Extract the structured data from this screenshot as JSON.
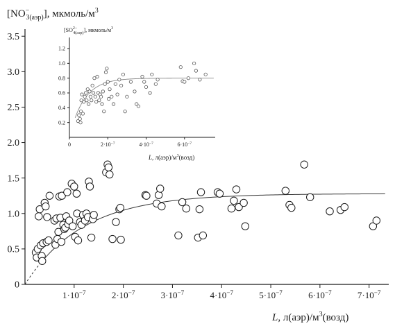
{
  "chart_data": [
    {
      "type": "scatter",
      "y_title": {
        "base": "[NO",
        "sup": "−",
        "sub": "3(аэр)",
        "rest": "], мкмоль/м",
        "unit_sup": "3"
      },
      "x_title": {
        "italic": "L",
        "rest": ", л(аэр)/м",
        "unit_sup": "3",
        "tail": "(возд)"
      },
      "xlim": [
        0,
        7.4e-07
      ],
      "ylim": [
        0,
        3.6
      ],
      "x_ticks": [
        {
          "value": 1e-07,
          "label": "1·10",
          "exp": "−7"
        },
        {
          "value": 2e-07,
          "label": "2·10",
          "exp": "−7"
        },
        {
          "value": 3e-07,
          "label": "3·10",
          "exp": "−7"
        },
        {
          "value": 4e-07,
          "label": "4·10",
          "exp": "−7"
        },
        {
          "value": 5e-07,
          "label": "5·10",
          "exp": "−7"
        },
        {
          "value": 6e-07,
          "label": "6·10",
          "exp": "−7"
        },
        {
          "value": 7e-07,
          "label": "7·10",
          "exp": "−7"
        }
      ],
      "y_ticks": [
        {
          "value": 0,
          "label": "0"
        },
        {
          "value": 0.5,
          "label": "0.5"
        },
        {
          "value": 1.0,
          "label": "1.0"
        },
        {
          "value": 1.5,
          "label": "1.5"
        },
        {
          "value": 2.0,
          "label": "2.0"
        },
        {
          "value": 2.5,
          "label": "2.5"
        },
        {
          "value": 3.0,
          "label": "3.0"
        },
        {
          "value": 3.5,
          "label": "3.5"
        }
      ],
      "points": [
        [
          2.2e-08,
          0.45
        ],
        [
          2.4e-08,
          0.38
        ],
        [
          2.6e-08,
          0.5
        ],
        [
          2.8e-08,
          0.96
        ],
        [
          3e-08,
          1.06
        ],
        [
          3.2e-08,
          0.55
        ],
        [
          3.4e-08,
          0.4
        ],
        [
          3.5e-08,
          0.33
        ],
        [
          3.7e-08,
          0.58
        ],
        [
          4e-08,
          1.15
        ],
        [
          4.2e-08,
          1.1
        ],
        [
          4.4e-08,
          0.6
        ],
        [
          4.5e-08,
          0.95
        ],
        [
          4.8e-08,
          0.62
        ],
        [
          5e-08,
          1.25
        ],
        [
          6e-08,
          0.9
        ],
        [
          6.2e-08,
          0.56
        ],
        [
          6.4e-08,
          0.93
        ],
        [
          6.6e-08,
          0.64
        ],
        [
          6.8e-08,
          0.74
        ],
        [
          7e-08,
          1.24
        ],
        [
          7.2e-08,
          0.94
        ],
        [
          7.4e-08,
          0.6
        ],
        [
          7.5e-08,
          1.25
        ],
        [
          7.8e-08,
          0.84
        ],
        [
          8e-08,
          0.78
        ],
        [
          8.2e-08,
          0.8
        ],
        [
          8.4e-08,
          0.96
        ],
        [
          8.6e-08,
          1.3
        ],
        [
          8.8e-08,
          0.85
        ],
        [
          9e-08,
          0.9
        ],
        [
          9.5e-08,
          1.42
        ],
        [
          9.7e-08,
          0.82
        ],
        [
          1e-07,
          1.38
        ],
        [
          1.02e-07,
          0.67
        ],
        [
          1.05e-07,
          1.28
        ],
        [
          1.06e-07,
          1.0
        ],
        [
          1.08e-07,
          0.62
        ],
        [
          1.12e-07,
          0.88
        ],
        [
          1.15e-07,
          0.84
        ],
        [
          1.18e-07,
          0.98
        ],
        [
          1.22e-07,
          0.9
        ],
        [
          1.25e-07,
          1.0
        ],
        [
          1.28e-07,
          0.95
        ],
        [
          1.3e-07,
          1.45
        ],
        [
          1.32e-07,
          1.38
        ],
        [
          1.35e-07,
          0.66
        ],
        [
          1.38e-07,
          0.92
        ],
        [
          1.4e-07,
          0.98
        ],
        [
          1.65e-07,
          1.58
        ],
        [
          1.68e-07,
          1.69
        ],
        [
          1.7e-07,
          1.65
        ],
        [
          1.72e-07,
          1.55
        ],
        [
          1.78e-07,
          0.64
        ],
        [
          1.85e-07,
          0.88
        ],
        [
          1.92e-07,
          1.06
        ],
        [
          1.94e-07,
          1.08
        ],
        [
          1.95e-07,
          0.63
        ],
        [
          2.45e-07,
          1.26
        ],
        [
          2.47e-07,
          1.25
        ],
        [
          2.68e-07,
          1.14
        ],
        [
          2.72e-07,
          1.26
        ],
        [
          2.75e-07,
          1.35
        ],
        [
          2.78e-07,
          1.1
        ],
        [
          3.12e-07,
          0.69
        ],
        [
          3.2e-07,
          1.16
        ],
        [
          3.28e-07,
          1.07
        ],
        [
          3.52e-07,
          0.66
        ],
        [
          3.55e-07,
          1.06
        ],
        [
          3.58e-07,
          1.3
        ],
        [
          3.62e-07,
          0.69
        ],
        [
          3.92e-07,
          1.3
        ],
        [
          3.96e-07,
          1.28
        ],
        [
          4.2e-07,
          1.07
        ],
        [
          4.25e-07,
          1.18
        ],
        [
          4.3e-07,
          1.34
        ],
        [
          4.35e-07,
          1.09
        ],
        [
          4.45e-07,
          1.15
        ],
        [
          4.48e-07,
          0.82
        ],
        [
          5.3e-07,
          1.32
        ],
        [
          5.38e-07,
          1.12
        ],
        [
          5.42e-07,
          1.08
        ],
        [
          5.68e-07,
          1.69
        ],
        [
          5.8e-07,
          1.23
        ],
        [
          6.2e-07,
          1.03
        ],
        [
          6.42e-07,
          1.05
        ],
        [
          6.5e-07,
          1.09
        ],
        [
          7.08e-07,
          0.82
        ],
        [
          7.15e-07,
          0.9
        ]
      ],
      "fit": {
        "type": "saturation",
        "ymax": 1.28,
        "scale": 1.18e-07,
        "dashed_until": 3.2e-08
      }
    },
    {
      "type": "scatter",
      "inset": true,
      "y_title": {
        "base": "[SO",
        "sup": "2−",
        "sub": "4(аэр)",
        "rest": "], мкмоль/м",
        "unit_sup": "3"
      },
      "x_title": {
        "italic": "L",
        "rest": ", л(аэр)/м",
        "unit_sup": "3",
        "tail": "(возд)"
      },
      "xlim": [
        0,
        7.6e-07
      ],
      "ylim": [
        0,
        1.35
      ],
      "x_ticks": [
        {
          "value": 0,
          "label": "0",
          "exp": ""
        },
        {
          "value": 2e-07,
          "label": "2·10",
          "exp": "−7"
        },
        {
          "value": 4e-07,
          "label": "4·10",
          "exp": "−7"
        },
        {
          "value": 6e-07,
          "label": "6·10",
          "exp": "−7"
        }
      ],
      "y_ticks": [
        {
          "value": 0.2,
          "label": "0.2"
        },
        {
          "value": 0.4,
          "label": "0.4"
        },
        {
          "value": 0.6,
          "label": "0.6"
        },
        {
          "value": 0.8,
          "label": "0.8"
        },
        {
          "value": 1.0,
          "label": "1.0"
        },
        {
          "value": 1.2,
          "label": "1.2"
        }
      ],
      "points": [
        [
          4.5e-08,
          0.22
        ],
        [
          5e-08,
          0.3
        ],
        [
          5.5e-08,
          0.25
        ],
        [
          5.8e-08,
          0.2
        ],
        [
          6e-08,
          0.35
        ],
        [
          6.2e-08,
          0.5
        ],
        [
          6.5e-08,
          0.58
        ],
        [
          7e-08,
          0.32
        ],
        [
          7.5e-08,
          0.48
        ],
        [
          8e-08,
          0.55
        ],
        [
          8.5e-08,
          0.6
        ],
        [
          9e-08,
          0.5
        ],
        [
          9.5e-08,
          0.65
        ],
        [
          1e-07,
          0.45
        ],
        [
          1.05e-07,
          0.62
        ],
        [
          1.1e-07,
          0.55
        ],
        [
          1.15e-07,
          0.5
        ],
        [
          1.2e-07,
          0.7
        ],
        [
          1.25e-07,
          0.6
        ],
        [
          1.3e-07,
          0.8
        ],
        [
          1.35e-07,
          0.55
        ],
        [
          1.4e-07,
          0.48
        ],
        [
          1.45e-07,
          0.82
        ],
        [
          1.5e-07,
          0.6
        ],
        [
          1.55e-07,
          0.5
        ],
        [
          1.6e-07,
          0.58
        ],
        [
          1.65e-07,
          0.55
        ],
        [
          1.7e-07,
          0.45
        ],
        [
          1.75e-07,
          0.62
        ],
        [
          1.8e-07,
          0.35
        ],
        [
          1.85e-07,
          0.72
        ],
        [
          1.9e-07,
          0.88
        ],
        [
          1.95e-07,
          0.93
        ],
        [
          2e-07,
          0.75
        ],
        [
          2.05e-07,
          0.52
        ],
        [
          2.1e-07,
          0.65
        ],
        [
          2.2e-07,
          0.55
        ],
        [
          2.3e-07,
          0.45
        ],
        [
          2.4e-07,
          0.72
        ],
        [
          2.5e-07,
          0.58
        ],
        [
          2.6e-07,
          0.78
        ],
        [
          2.7e-07,
          0.7
        ],
        [
          2.8e-07,
          0.85
        ],
        [
          2.9e-07,
          0.35
        ],
        [
          3e-07,
          0.55
        ],
        [
          3.2e-07,
          0.75
        ],
        [
          3.4e-07,
          0.62
        ],
        [
          3.5e-07,
          0.45
        ],
        [
          3.6e-07,
          0.42
        ],
        [
          3.8e-07,
          0.82
        ],
        [
          3.9e-07,
          0.75
        ],
        [
          4e-07,
          0.68
        ],
        [
          4.2e-07,
          0.6
        ],
        [
          4.3e-07,
          0.85
        ],
        [
          4.5e-07,
          0.72
        ],
        [
          4.6e-07,
          0.78
        ],
        [
          5.8e-07,
          0.95
        ],
        [
          5.9e-07,
          0.76
        ],
        [
          6e-07,
          0.75
        ],
        [
          6.2e-07,
          0.8
        ],
        [
          6.5e-07,
          1.0
        ],
        [
          6.6e-07,
          0.9
        ],
        [
          6.8e-07,
          0.78
        ],
        [
          7.1e-07,
          0.85
        ]
      ],
      "fit": {
        "type": "saturation",
        "ymax": 0.8,
        "scale": 7.5e-08,
        "x_from": 3e-08
      }
    }
  ]
}
